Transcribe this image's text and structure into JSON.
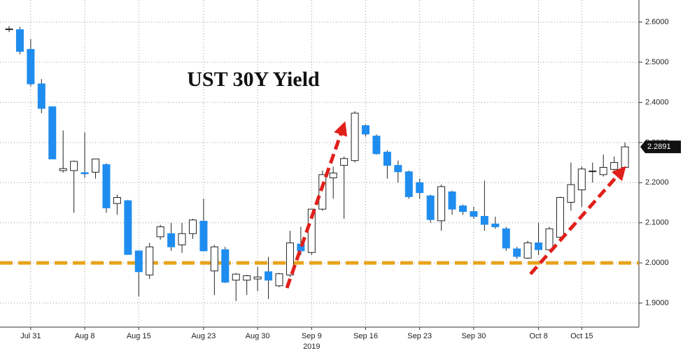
{
  "chart_data": {
    "type": "candlestick",
    "title": "UST 30Y Yield",
    "categories": [
      null,
      null,
      "Jul 31",
      null,
      null,
      null,
      null,
      "Aug 8",
      null,
      null,
      null,
      null,
      "Aug 15",
      null,
      null,
      null,
      null,
      null,
      "Aug 23",
      null,
      null,
      null,
      null,
      "Aug 30",
      null,
      null,
      null,
      null,
      "Sep 9",
      null,
      null,
      null,
      null,
      "Sep 16",
      null,
      null,
      null,
      null,
      "Sep 23",
      null,
      null,
      null,
      null,
      "Sep 30",
      null,
      null,
      null,
      null,
      null,
      "Oct 8",
      null,
      null,
      null,
      "Oct 15",
      null,
      null,
      null,
      null
    ],
    "x_sublabel": "2019",
    "open": [
      2.583,
      2.581,
      2.532,
      2.446,
      2.389,
      2.23,
      2.23,
      2.225,
      2.226,
      2.245,
      2.148,
      2.155,
      2.03,
      1.97,
      2.065,
      2.073,
      2.045,
      2.073,
      2.104,
      1.98,
      2.033,
      1.957,
      1.957,
      1.96,
      1.978,
      1.943,
      1.97,
      2.047,
      2.026,
      2.134,
      2.212,
      2.243,
      2.255,
      2.342,
      2.316,
      2.276,
      2.243,
      2.227,
      2.2,
      2.167,
      2.105,
      2.177,
      2.142,
      2.128,
      2.116,
      2.097,
      2.085,
      2.035,
      2.012,
      2.05,
      2.033,
      2.064,
      2.151,
      2.182,
      2.229,
      2.22,
      2.233,
      2.238
    ],
    "high": [
      2.59,
      2.588,
      2.558,
      2.458,
      2.39,
      2.33,
      2.255,
      2.325,
      2.26,
      2.248,
      2.17,
      2.157,
      2.03,
      2.05,
      2.095,
      2.1,
      2.1,
      2.11,
      2.16,
      2.045,
      2.04,
      1.975,
      1.97,
      1.99,
      2.015,
      1.975,
      2.08,
      2.09,
      2.135,
      2.23,
      2.24,
      2.265,
      2.378,
      2.345,
      2.32,
      2.28,
      2.255,
      2.23,
      2.21,
      2.17,
      2.195,
      2.18,
      2.145,
      2.14,
      2.205,
      2.115,
      2.09,
      2.04,
      2.055,
      2.1,
      2.09,
      2.165,
      2.25,
      2.24,
      2.25,
      2.27,
      2.265,
      2.3
    ],
    "low": [
      2.575,
      2.52,
      2.44,
      2.373,
      2.259,
      2.225,
      2.125,
      2.212,
      2.21,
      2.125,
      2.12,
      2.02,
      1.917,
      1.96,
      2.058,
      2.03,
      2.025,
      2.06,
      2.03,
      1.92,
      1.95,
      1.905,
      1.92,
      1.93,
      1.91,
      1.94,
      1.965,
      2.02,
      2.02,
      2.13,
      2.16,
      2.11,
      2.25,
      2.315,
      2.27,
      2.21,
      2.2,
      2.16,
      2.16,
      2.1,
      2.08,
      2.12,
      2.12,
      2.11,
      2.08,
      2.085,
      2.03,
      2.01,
      2.01,
      2.02,
      2.03,
      2.06,
      2.13,
      2.14,
      2.2,
      2.215,
      2.23,
      2.235
    ],
    "close": [
      2.583,
      2.527,
      2.446,
      2.385,
      2.259,
      2.235,
      2.253,
      2.222,
      2.259,
      2.137,
      2.163,
      2.021,
      1.978,
      2.04,
      2.09,
      2.04,
      2.073,
      2.107,
      2.03,
      2.04,
      1.952,
      1.972,
      1.968,
      1.965,
      1.957,
      1.973,
      2.05,
      2.03,
      2.134,
      2.22,
      2.224,
      2.26,
      2.373,
      2.321,
      2.272,
      2.243,
      2.227,
      2.165,
      2.175,
      2.108,
      2.19,
      2.134,
      2.128,
      2.116,
      2.096,
      2.09,
      2.037,
      2.016,
      2.05,
      2.033,
      2.085,
      2.163,
      2.195,
      2.234,
      2.229,
      2.238,
      2.25,
      2.2891
    ],
    "last_label": "2.2891",
    "up_color": "#ffffff",
    "down_color": "#1f8def",
    "reference_line": {
      "value": 2.0,
      "color": "#e8a31c"
    },
    "ylim": [
      1.84,
      2.655
    ],
    "yticks": [
      {
        "value": 1.9,
        "label": "1.9000"
      },
      {
        "value": 2.0,
        "label": "2.0000"
      },
      {
        "value": 2.1,
        "label": "2.1000"
      },
      {
        "value": 2.2,
        "label": "2.2000"
      },
      {
        "value": 2.3,
        "label": "2.3000"
      },
      {
        "value": 2.4,
        "label": "2.4000"
      },
      {
        "value": 2.5,
        "label": "2.5000"
      },
      {
        "value": 2.6,
        "label": "2.6000"
      }
    ],
    "grid": true
  }
}
